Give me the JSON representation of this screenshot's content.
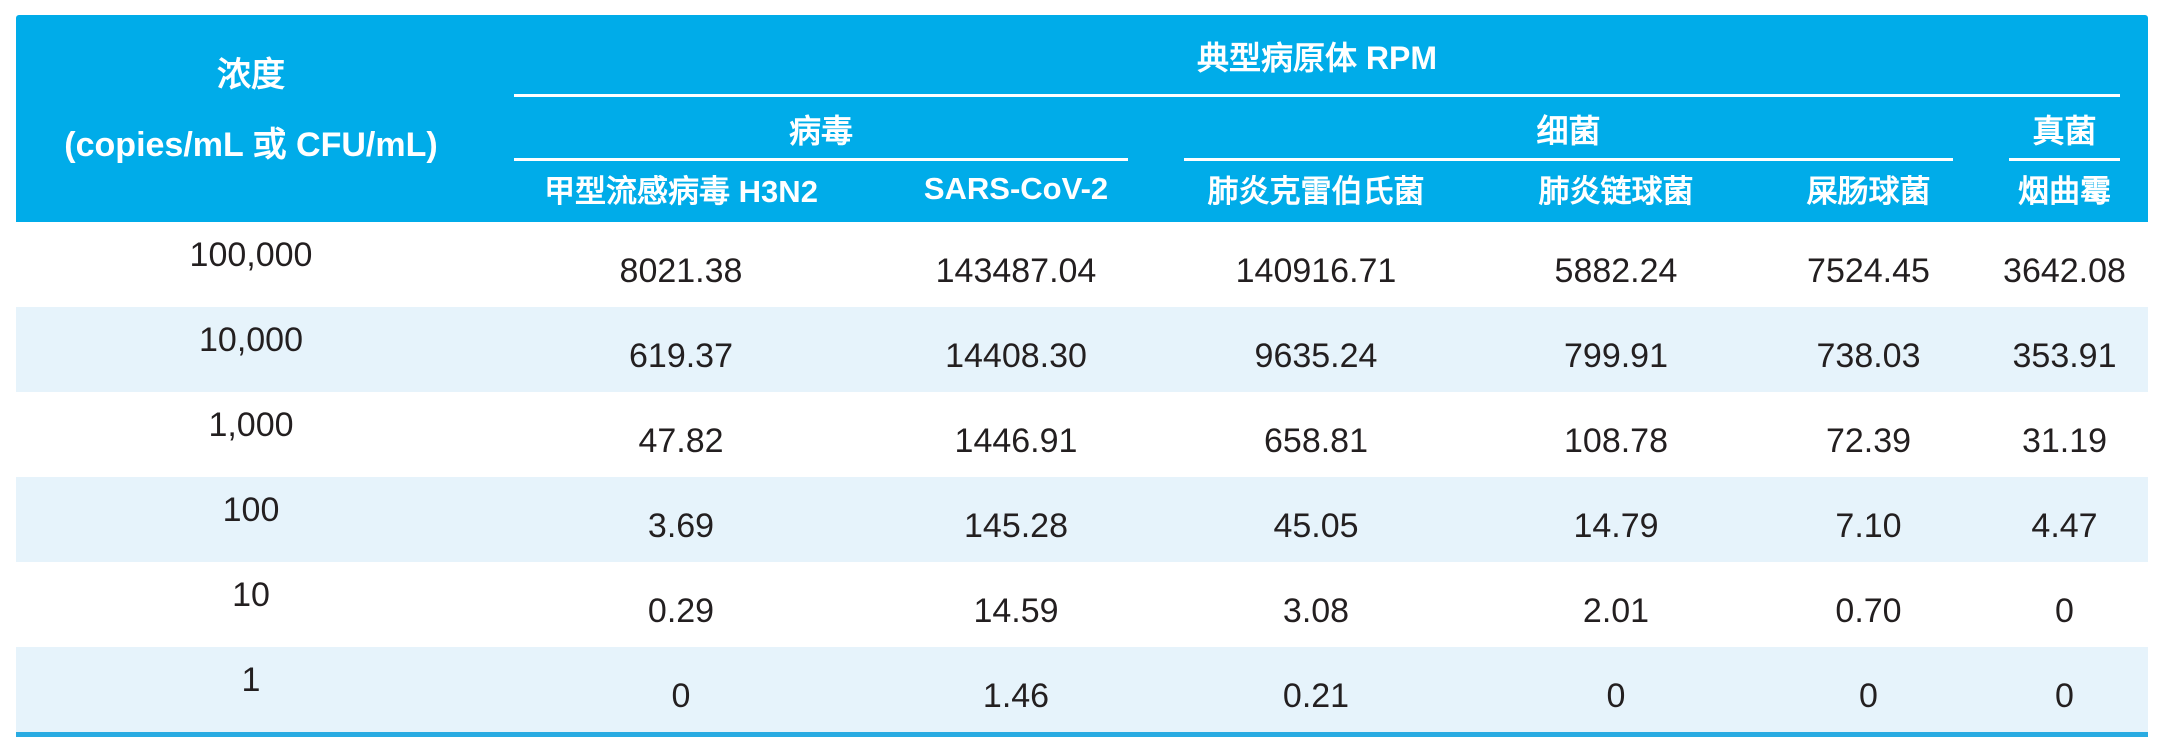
{
  "colors": {
    "header_bg": "#00ACE9",
    "header_text": "#FFFFFF",
    "row_alt_bg": "#E6F3FB",
    "body_text": "#231F20",
    "bottom_border": "#29ABE2"
  },
  "table": {
    "header": {
      "concentration_line1": "浓度",
      "concentration_line2": "(copies/mL 或 CFU/mL)",
      "group_title": "典型病原体 RPM",
      "groups": {
        "virus": "病毒",
        "bacteria": "细菌",
        "fungi": "真菌"
      },
      "columns": [
        "甲型流感病毒 H3N2",
        "SARS-CoV-2",
        "肺炎克雷伯氏菌",
        "肺炎链球菌",
        "屎肠球菌",
        "烟曲霉"
      ]
    },
    "rows": [
      {
        "concentration": "100,000",
        "values": [
          "8021.38",
          "143487.04",
          "140916.71",
          "5882.24",
          "7524.45",
          "3642.08"
        ]
      },
      {
        "concentration": "10,000",
        "values": [
          "619.37",
          "14408.30",
          "9635.24",
          "799.91",
          "738.03",
          "353.91"
        ]
      },
      {
        "concentration": "1,000",
        "values": [
          "47.82",
          "1446.91",
          "658.81",
          "108.78",
          "72.39",
          "31.19"
        ]
      },
      {
        "concentration": "100",
        "values": [
          "3.69",
          "145.28",
          "45.05",
          "14.79",
          "7.10",
          "4.47"
        ]
      },
      {
        "concentration": "10",
        "values": [
          "0.29",
          "14.59",
          "3.08",
          "2.01",
          "0.70",
          "0"
        ]
      },
      {
        "concentration": "1",
        "values": [
          "0",
          "1.46",
          "0.21",
          "0",
          "0",
          "0"
        ]
      }
    ]
  },
  "chart_data": {
    "type": "table",
    "title": "典型病原体 RPM",
    "row_header": "浓度 (copies/mL 或 CFU/mL)",
    "column_groups": [
      {
        "label": "病毒",
        "columns": [
          "甲型流感病毒 H3N2",
          "SARS-CoV-2"
        ]
      },
      {
        "label": "细菌",
        "columns": [
          "肺炎克雷伯氏菌",
          "肺炎链球菌",
          "屎肠球菌"
        ]
      },
      {
        "label": "真菌",
        "columns": [
          "烟曲霉"
        ]
      }
    ],
    "concentrations": [
      100000,
      10000,
      1000,
      100,
      10,
      1
    ],
    "rpm_values": [
      [
        8021.38,
        143487.04,
        140916.71,
        5882.24,
        7524.45,
        3642.08
      ],
      [
        619.37,
        14408.3,
        9635.24,
        799.91,
        738.03,
        353.91
      ],
      [
        47.82,
        1446.91,
        658.81,
        108.78,
        72.39,
        31.19
      ],
      [
        3.69,
        145.28,
        45.05,
        14.79,
        7.1,
        4.47
      ],
      [
        0.29,
        14.59,
        3.08,
        2.01,
        0.7,
        0
      ],
      [
        0,
        1.46,
        0.21,
        0,
        0,
        0
      ]
    ]
  }
}
